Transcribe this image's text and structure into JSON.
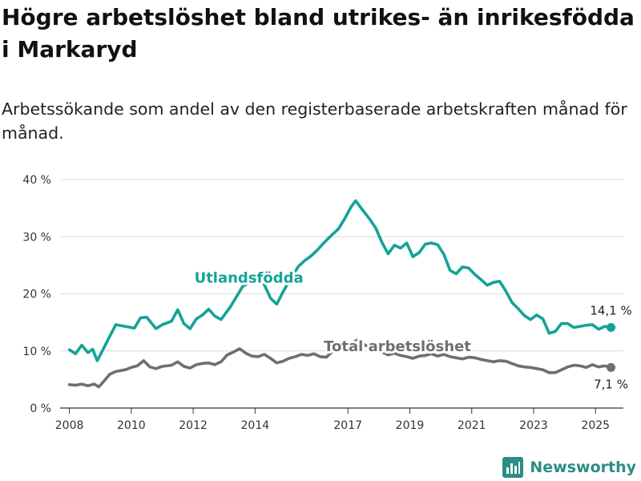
{
  "title": "Högre arbetslöshet bland utrikes- än inrikesfödda i Markaryd",
  "subtitle": "Arbetssökande som andel av den registerbaserade arbetskraften månad för månad.",
  "brand": "Newsworthy",
  "colors": {
    "foreign": "#14a396",
    "total": "#6f6e73",
    "grid": "#dcdcdc",
    "axis": "#333333"
  },
  "chart_data": {
    "type": "line",
    "xlim": [
      2007.7,
      2025.9
    ],
    "ylim": [
      0,
      40
    ],
    "yticks": [
      0,
      10,
      20,
      30,
      40
    ],
    "ytick_labels": [
      "0 %",
      "10 %",
      "20 %",
      "30 %",
      "40 %"
    ],
    "xticks": [
      2008,
      2010,
      2012,
      2014,
      2017,
      2019,
      2021,
      2023,
      2025
    ],
    "xtick_labels": [
      "2008",
      "2010",
      "2012",
      "2014",
      "2017",
      "2019",
      "2021",
      "2023",
      "2025"
    ],
    "grid": true,
    "series": [
      {
        "name": "Utlandsfödda",
        "color": "#14a396",
        "end_label": "14,1 %",
        "points": [
          [
            2008.0,
            10.2
          ],
          [
            2008.2,
            9.5
          ],
          [
            2008.4,
            11.0
          ],
          [
            2008.6,
            9.7
          ],
          [
            2008.75,
            10.3
          ],
          [
            2008.9,
            8.3
          ],
          [
            2009.1,
            10.4
          ],
          [
            2009.3,
            12.5
          ],
          [
            2009.5,
            14.6
          ],
          [
            2009.8,
            14.3
          ],
          [
            2010.1,
            14.0
          ],
          [
            2010.3,
            15.8
          ],
          [
            2010.5,
            15.9
          ],
          [
            2010.8,
            13.9
          ],
          [
            2011.0,
            14.6
          ],
          [
            2011.3,
            15.2
          ],
          [
            2011.5,
            17.2
          ],
          [
            2011.7,
            14.8
          ],
          [
            2011.9,
            13.9
          ],
          [
            2012.1,
            15.6
          ],
          [
            2012.3,
            16.3
          ],
          [
            2012.5,
            17.3
          ],
          [
            2012.7,
            16.1
          ],
          [
            2012.9,
            15.5
          ],
          [
            2013.2,
            17.7
          ],
          [
            2013.4,
            19.5
          ],
          [
            2013.6,
            21.3
          ],
          [
            2013.9,
            22.2
          ],
          [
            2014.1,
            22.9
          ],
          [
            2014.3,
            21.6
          ],
          [
            2014.5,
            19.2
          ],
          [
            2014.7,
            18.2
          ],
          [
            2014.9,
            20.3
          ],
          [
            2015.1,
            22.2
          ],
          [
            2015.4,
            24.8
          ],
          [
            2015.6,
            25.8
          ],
          [
            2015.8,
            26.6
          ],
          [
            2016.0,
            27.6
          ],
          [
            2016.2,
            28.8
          ],
          [
            2016.5,
            30.4
          ],
          [
            2016.7,
            31.4
          ],
          [
            2016.9,
            33.2
          ],
          [
            2017.1,
            35.2
          ],
          [
            2017.25,
            36.3
          ],
          [
            2017.5,
            34.5
          ],
          [
            2017.7,
            33.1
          ],
          [
            2017.9,
            31.5
          ],
          [
            2018.1,
            29.0
          ],
          [
            2018.3,
            27.0
          ],
          [
            2018.5,
            28.5
          ],
          [
            2018.7,
            28.0
          ],
          [
            2018.9,
            28.9
          ],
          [
            2019.1,
            26.5
          ],
          [
            2019.3,
            27.2
          ],
          [
            2019.5,
            28.7
          ],
          [
            2019.7,
            28.9
          ],
          [
            2019.9,
            28.6
          ],
          [
            2020.1,
            26.9
          ],
          [
            2020.3,
            24.1
          ],
          [
            2020.5,
            23.5
          ],
          [
            2020.7,
            24.7
          ],
          [
            2020.9,
            24.5
          ],
          [
            2021.1,
            23.4
          ],
          [
            2021.3,
            22.5
          ],
          [
            2021.5,
            21.5
          ],
          [
            2021.7,
            22.0
          ],
          [
            2021.9,
            22.2
          ],
          [
            2022.1,
            20.5
          ],
          [
            2022.3,
            18.5
          ],
          [
            2022.5,
            17.4
          ],
          [
            2022.7,
            16.2
          ],
          [
            2022.9,
            15.5
          ],
          [
            2023.1,
            16.3
          ],
          [
            2023.3,
            15.6
          ],
          [
            2023.5,
            13.1
          ],
          [
            2023.7,
            13.4
          ],
          [
            2023.9,
            14.8
          ],
          [
            2024.1,
            14.8
          ],
          [
            2024.3,
            14.1
          ],
          [
            2024.5,
            14.3
          ],
          [
            2024.7,
            14.5
          ],
          [
            2024.9,
            14.6
          ],
          [
            2025.1,
            13.8
          ],
          [
            2025.3,
            14.3
          ],
          [
            2025.5,
            14.1
          ]
        ]
      },
      {
        "name": "Total arbetslöshet",
        "color": "#6f6e73",
        "end_label": "7,1 %",
        "points": [
          [
            2008.0,
            4.1
          ],
          [
            2008.2,
            4.0
          ],
          [
            2008.4,
            4.2
          ],
          [
            2008.6,
            3.9
          ],
          [
            2008.8,
            4.2
          ],
          [
            2008.95,
            3.7
          ],
          [
            2009.1,
            4.6
          ],
          [
            2009.3,
            5.9
          ],
          [
            2009.5,
            6.4
          ],
          [
            2009.8,
            6.7
          ],
          [
            2010.0,
            7.1
          ],
          [
            2010.2,
            7.4
          ],
          [
            2010.4,
            8.3
          ],
          [
            2010.6,
            7.2
          ],
          [
            2010.8,
            6.9
          ],
          [
            2011.0,
            7.3
          ],
          [
            2011.3,
            7.5
          ],
          [
            2011.5,
            8.1
          ],
          [
            2011.7,
            7.3
          ],
          [
            2011.9,
            7.0
          ],
          [
            2012.1,
            7.6
          ],
          [
            2012.3,
            7.8
          ],
          [
            2012.5,
            7.9
          ],
          [
            2012.7,
            7.6
          ],
          [
            2012.9,
            8.1
          ],
          [
            2013.1,
            9.3
          ],
          [
            2013.3,
            9.8
          ],
          [
            2013.5,
            10.4
          ],
          [
            2013.7,
            9.6
          ],
          [
            2013.9,
            9.1
          ],
          [
            2014.1,
            9.0
          ],
          [
            2014.3,
            9.4
          ],
          [
            2014.5,
            8.7
          ],
          [
            2014.7,
            7.9
          ],
          [
            2014.9,
            8.2
          ],
          [
            2015.1,
            8.7
          ],
          [
            2015.3,
            9.0
          ],
          [
            2015.5,
            9.4
          ],
          [
            2015.7,
            9.2
          ],
          [
            2015.9,
            9.5
          ],
          [
            2016.1,
            9.0
          ],
          [
            2016.3,
            8.9
          ],
          [
            2016.5,
            9.9
          ],
          [
            2016.7,
            10.0
          ],
          [
            2016.9,
            10.4
          ],
          [
            2017.1,
            11.3
          ],
          [
            2017.3,
            11.9
          ],
          [
            2017.5,
            11.2
          ],
          [
            2017.7,
            10.6
          ],
          [
            2017.9,
            10.3
          ],
          [
            2018.1,
            9.8
          ],
          [
            2018.3,
            9.3
          ],
          [
            2018.5,
            9.6
          ],
          [
            2018.7,
            9.2
          ],
          [
            2018.9,
            9.0
          ],
          [
            2019.1,
            8.7
          ],
          [
            2019.3,
            9.1
          ],
          [
            2019.5,
            9.2
          ],
          [
            2019.7,
            9.5
          ],
          [
            2019.9,
            9.1
          ],
          [
            2020.1,
            9.4
          ],
          [
            2020.3,
            9.0
          ],
          [
            2020.5,
            8.8
          ],
          [
            2020.7,
            8.6
          ],
          [
            2020.9,
            8.9
          ],
          [
            2021.1,
            8.8
          ],
          [
            2021.3,
            8.5
          ],
          [
            2021.5,
            8.3
          ],
          [
            2021.7,
            8.1
          ],
          [
            2021.9,
            8.3
          ],
          [
            2022.1,
            8.2
          ],
          [
            2022.3,
            7.8
          ],
          [
            2022.5,
            7.4
          ],
          [
            2022.7,
            7.2
          ],
          [
            2022.9,
            7.1
          ],
          [
            2023.1,
            6.9
          ],
          [
            2023.3,
            6.7
          ],
          [
            2023.5,
            6.2
          ],
          [
            2023.7,
            6.2
          ],
          [
            2023.9,
            6.7
          ],
          [
            2024.1,
            7.2
          ],
          [
            2024.3,
            7.5
          ],
          [
            2024.5,
            7.4
          ],
          [
            2024.7,
            7.1
          ],
          [
            2024.9,
            7.6
          ],
          [
            2025.1,
            7.2
          ],
          [
            2025.3,
            7.4
          ],
          [
            2025.5,
            7.1
          ]
        ]
      }
    ]
  }
}
